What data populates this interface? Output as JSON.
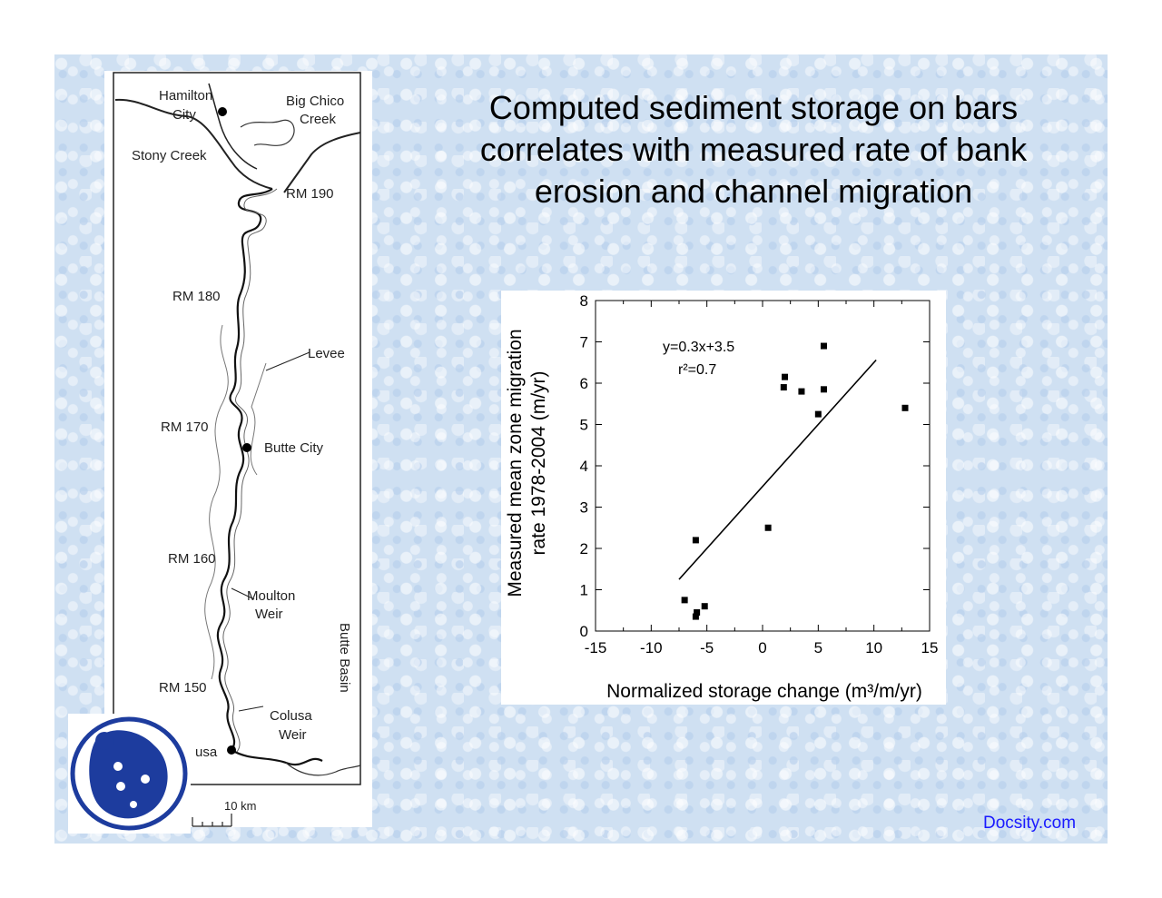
{
  "slide": {
    "title_lines": [
      "Computed sediment storage on bars",
      "correlates with measured rate of bank",
      "erosion and channel migration"
    ],
    "footer_brand": "Docsity.com"
  },
  "map": {
    "labels": {
      "hamilton": "Hamilton",
      "city": "City",
      "big_chico": "Big Chico",
      "creek": "Creek",
      "stony_creek": "Stony Creek",
      "rm190": "RM 190",
      "rm180": "RM 180",
      "levee": "Levee",
      "rm170": "RM 170",
      "butte_city": "Butte City",
      "rm160": "RM 160",
      "moulton": "Moulton",
      "weir1": "Weir",
      "butte_basin": "Butte Basin",
      "rm150": "RM 150",
      "colusa": "Colusa",
      "weir2": "Weir",
      "usa": "usa",
      "scale": "10  km"
    }
  },
  "chart_data": {
    "type": "scatter",
    "xlabel": "Normalized storage change (m³/m/yr)",
    "ylabel_lines": [
      "Measured mean zone migration",
      "rate 1978-2004 (m/yr)"
    ],
    "xlim": [
      -15,
      15
    ],
    "ylim": [
      0,
      8
    ],
    "xticks": [
      -15,
      -10,
      -5,
      0,
      5,
      10,
      15
    ],
    "yticks": [
      0,
      1,
      2,
      3,
      4,
      5,
      6,
      7,
      8
    ],
    "grid": false,
    "equation": "y=0.3x+3.5",
    "r_squared": "r²=0.7",
    "fit_line": {
      "slope": 0.3,
      "intercept": 3.5,
      "x_range": [
        -7.5,
        10.2
      ]
    },
    "points": [
      {
        "x": -7,
        "y": 0.75
      },
      {
        "x": -6,
        "y": 0.35
      },
      {
        "x": -5.9,
        "y": 0.45
      },
      {
        "x": -5.2,
        "y": 0.6
      },
      {
        "x": -6,
        "y": 2.2
      },
      {
        "x": 0.5,
        "y": 2.5
      },
      {
        "x": 1.9,
        "y": 5.9
      },
      {
        "x": 2,
        "y": 6.15
      },
      {
        "x": 3.5,
        "y": 5.8
      },
      {
        "x": 5,
        "y": 5.25
      },
      {
        "x": 5.5,
        "y": 5.85
      },
      {
        "x": 5.5,
        "y": 6.9
      },
      {
        "x": 12.8,
        "y": 5.4
      }
    ]
  }
}
